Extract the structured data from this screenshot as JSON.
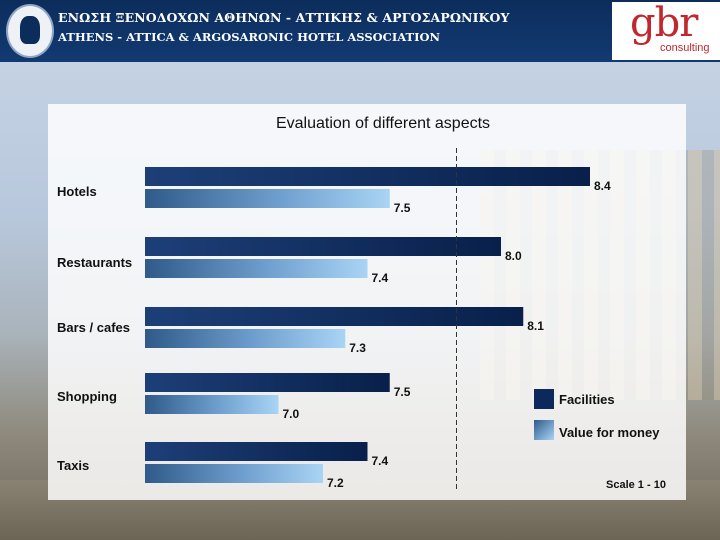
{
  "header": {
    "association_greek": "ΕΝΩΣΗ ΞΕΝΟΔΟΧΩΝ ΑΘΗΝΩΝ - ΑΤΤΙΚΗΣ & ΑΡΓΟΣΑΡΩΝΙΚΟΥ",
    "association_english": "ATHENS - ATTICA & ARGOSARONIC HOTEL ASSOCIATION",
    "brand_logo": "gbr",
    "brand_sub": "consulting"
  },
  "colors": {
    "header_bg": "#0c2d5c",
    "facilities": "#0b2a5b",
    "value_for_money": "#9fcbf0",
    "brand_red": "#c1272d"
  },
  "chart_data": {
    "type": "bar",
    "orientation": "horizontal",
    "title": "Evaluation of different aspects",
    "categories": [
      "Hotels",
      "Restaurants",
      "Bars / cafes",
      "Shopping",
      "Taxis"
    ],
    "series": [
      {
        "name": "Facilities",
        "values": [
          8.4,
          8.0,
          8.1,
          7.5,
          7.4
        ]
      },
      {
        "name": "Value for money",
        "values": [
          7.5,
          7.4,
          7.3,
          7.0,
          7.2
        ]
      }
    ],
    "value_labels": {
      "Facilities": [
        "8.4",
        "8.0",
        "8.1",
        "7.5",
        "7.4"
      ],
      "Value for money": [
        "7.5",
        "7.4",
        "7.3",
        "7.0",
        "7.2"
      ]
    },
    "reference_line": 7.8,
    "legend_position": "right",
    "scale_note": "Scale 1 - 10",
    "xlabel": "",
    "ylabel": ""
  }
}
